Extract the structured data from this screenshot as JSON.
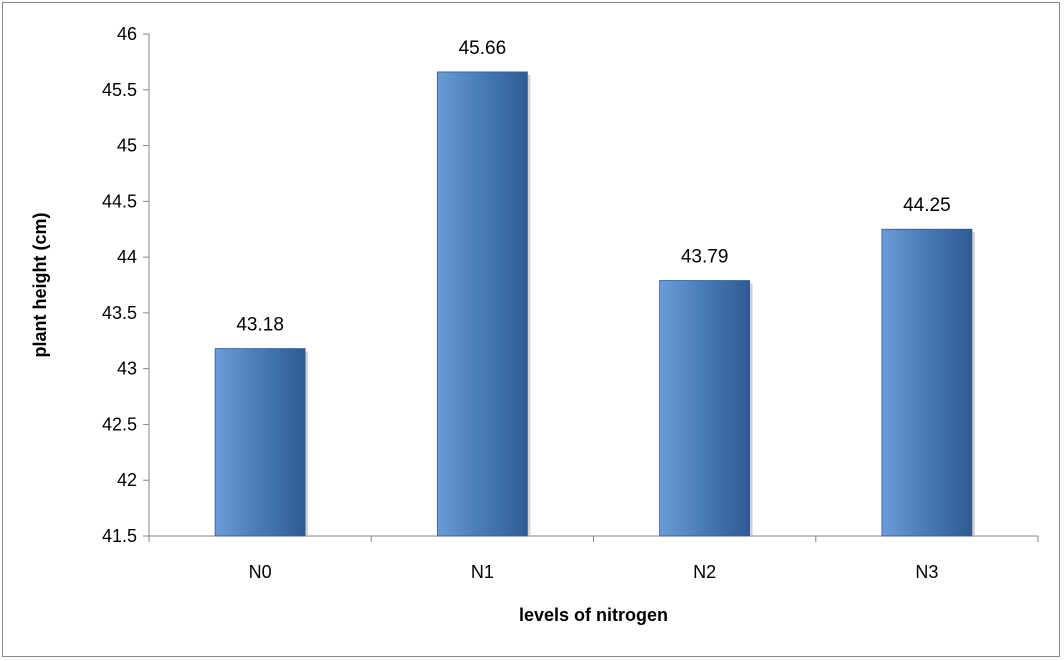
{
  "chart_data": {
    "type": "bar",
    "title": "",
    "xlabel": "levels of nitrogen",
    "ylabel": "plant height (cm)",
    "categories": [
      "N0",
      "N1",
      "N2",
      "N3"
    ],
    "values": [
      43.18,
      45.66,
      43.79,
      44.25
    ],
    "data_labels": [
      "43.18",
      "45.66",
      "43.79",
      "44.25"
    ],
    "ylim": [
      41.5,
      46
    ],
    "y_ticks": [
      "41.5",
      "42",
      "42.5",
      "43",
      "43.5",
      "44",
      "44.5",
      "45",
      "45.5",
      "46"
    ],
    "grid": false,
    "legend": "none",
    "bar_color": "#4a7ebb",
    "bar_color_light": "#6b9bd8",
    "bar_color_dark": "#2f5a94"
  }
}
